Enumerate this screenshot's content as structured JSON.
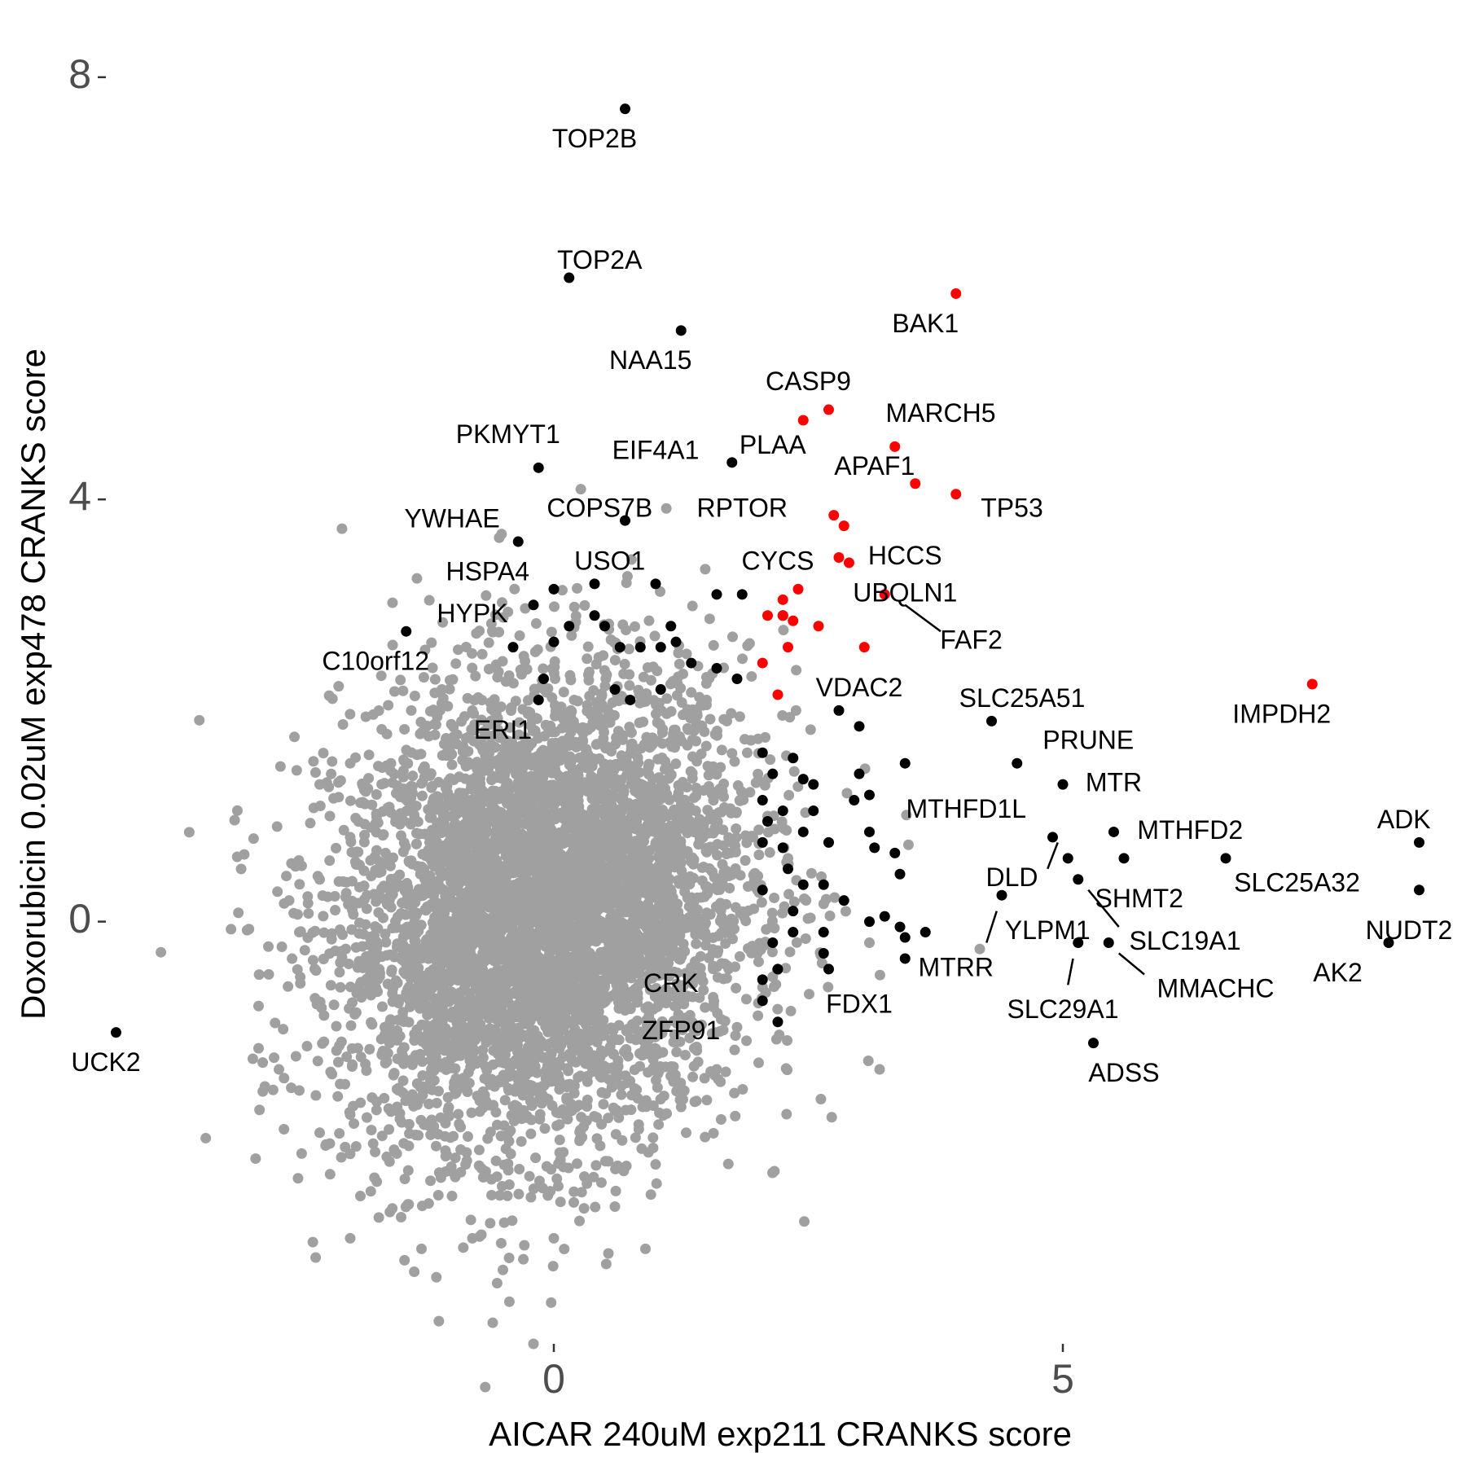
{
  "chart_data": {
    "type": "scatter",
    "xlabel": "AICAR 240uM exp211 CRANKS score",
    "ylabel": "Doxorubicin 0.02uM exp478 CRANKS score",
    "xlim": [
      -4.4,
      8.8
    ],
    "ylim": [
      -4.0,
      8.5
    ],
    "x_ticks": [
      0,
      5
    ],
    "y_ticks": [
      0,
      4,
      8
    ],
    "grid": false,
    "legend": "none",
    "colors": {
      "background": "#a0a0a0",
      "hit": "#000000",
      "apoptosis": "#ff0000"
    },
    "background_cloud": {
      "color": "#a0a0a0",
      "description_free": true,
      "core_center": [
        -0.1,
        0.1
      ],
      "core_spread": [
        1.0,
        1.1
      ],
      "outer_points": [
        [
          -1.4,
          2.0
        ],
        [
          -0.8,
          2.0
        ],
        [
          -1.6,
          1.5
        ],
        [
          -2.0,
          1.5
        ],
        [
          -2.3,
          1.3
        ],
        [
          -2.0,
          0.8
        ],
        [
          -2.3,
          0.4
        ],
        [
          -2.6,
          0.2
        ],
        [
          -2.5,
          -0.1
        ],
        [
          -2.8,
          -0.5
        ],
        [
          -2.9,
          -1.2
        ],
        [
          -2.7,
          -1.4
        ],
        [
          -2.5,
          -1.6
        ],
        [
          -2.3,
          -2.0
        ],
        [
          -2.0,
          -2.2
        ],
        [
          -1.9,
          -2.6
        ],
        [
          -2.0,
          -3.0
        ],
        [
          -1.5,
          -2.8
        ],
        [
          -1.3,
          -3.1
        ],
        [
          -0.8,
          -3.0
        ],
        [
          -0.5,
          -3.3
        ],
        [
          0.0,
          -3.0
        ],
        [
          0.6,
          -2.7
        ],
        [
          1.0,
          -2.3
        ],
        [
          1.3,
          -2.0
        ],
        [
          1.6,
          -1.4
        ],
        [
          1.8,
          -1.0
        ],
        [
          2.0,
          -0.3
        ],
        [
          2.0,
          0.3
        ],
        [
          2.1,
          1.0
        ],
        [
          1.9,
          1.6
        ],
        [
          1.7,
          1.9
        ],
        [
          2.3,
          0.6
        ],
        [
          3.2,
          -1.4
        ],
        [
          3.1,
          -0.2
        ],
        [
          1.4,
          -1.7
        ],
        [
          -0.6,
          -3.8
        ],
        [
          -0.2,
          -4.0
        ],
        [
          -2.2,
          1.0
        ],
        [
          -1.1,
          2.2
        ],
        [
          1.5,
          2.1
        ],
        [
          0.2,
          2.1
        ],
        [
          -2.9,
          -0.8
        ],
        [
          -1.0,
          -2.6
        ],
        [
          0.9,
          -3.1
        ]
      ]
    },
    "hits_black": [
      {
        "x": 0.7,
        "y": 7.7
      },
      {
        "x": 0.15,
        "y": 6.1
      },
      {
        "x": 1.25,
        "y": 5.6
      },
      {
        "x": -0.15,
        "y": 4.3
      },
      {
        "x": 1.75,
        "y": 4.35
      },
      {
        "x": 0.7,
        "y": 3.8
      },
      {
        "x": -0.35,
        "y": 3.6
      },
      {
        "x": -1.45,
        "y": 2.75
      },
      {
        "x": -0.2,
        "y": 3.0
      },
      {
        "x": 0.0,
        "y": 3.15
      },
      {
        "x": 0.4,
        "y": 3.2
      },
      {
        "x": 1.0,
        "y": 3.2
      },
      {
        "x": 1.6,
        "y": 3.1
      },
      {
        "x": 1.85,
        "y": 3.1
      },
      {
        "x": -0.4,
        "y": 2.6
      },
      {
        "x": -0.1,
        "y": 2.3
      },
      {
        "x": -0.15,
        "y": 2.1
      },
      {
        "x": 0.0,
        "y": 2.65
      },
      {
        "x": 0.15,
        "y": 2.8
      },
      {
        "x": 0.4,
        "y": 2.9
      },
      {
        "x": 0.5,
        "y": 2.8
      },
      {
        "x": 0.65,
        "y": 2.6
      },
      {
        "x": 0.85,
        "y": 2.6
      },
      {
        "x": 1.05,
        "y": 2.6
      },
      {
        "x": 1.15,
        "y": 2.8
      },
      {
        "x": 1.2,
        "y": 2.65
      },
      {
        "x": 1.35,
        "y": 2.45
      },
      {
        "x": 0.6,
        "y": 2.2
      },
      {
        "x": 0.75,
        "y": 2.1
      },
      {
        "x": 1.05,
        "y": 2.2
      },
      {
        "x": 1.6,
        "y": 2.4
      },
      {
        "x": 1.8,
        "y": 2.3
      },
      {
        "x": 2.25,
        "y": 2.9
      },
      {
        "x": 2.8,
        "y": 2.0
      },
      {
        "x": 3.0,
        "y": 1.85
      },
      {
        "x": 4.3,
        "y": 1.9
      },
      {
        "x": 4.55,
        "y": 1.5
      },
      {
        "x": 5.0,
        "y": 1.3
      },
      {
        "x": 5.5,
        "y": 0.85
      },
      {
        "x": 6.6,
        "y": 0.6
      },
      {
        "x": 8.5,
        "y": 0.75
      },
      {
        "x": 8.5,
        "y": 0.3
      },
      {
        "x": 4.9,
        "y": 0.8
      },
      {
        "x": 5.05,
        "y": 0.6
      },
      {
        "x": 5.6,
        "y": 0.6
      },
      {
        "x": 5.15,
        "y": 0.4
      },
      {
        "x": 4.4,
        "y": 0.25
      },
      {
        "x": 5.15,
        "y": -0.2
      },
      {
        "x": 5.45,
        "y": -0.2
      },
      {
        "x": 8.2,
        "y": -0.2
      },
      {
        "x": 5.3,
        "y": -1.15
      },
      {
        "x": 3.45,
        "y": 1.5
      },
      {
        "x": 3.0,
        "y": 1.4
      },
      {
        "x": 3.1,
        "y": 1.2
      },
      {
        "x": 2.95,
        "y": 1.15
      },
      {
        "x": 2.55,
        "y": 1.3
      },
      {
        "x": 2.35,
        "y": 1.55
      },
      {
        "x": 2.45,
        "y": 1.35
      },
      {
        "x": 2.15,
        "y": 1.4
      },
      {
        "x": 2.05,
        "y": 1.6
      },
      {
        "x": 2.25,
        "y": 1.05
      },
      {
        "x": 2.55,
        "y": 1.05
      },
      {
        "x": 2.45,
        "y": 0.85
      },
      {
        "x": 2.7,
        "y": 0.75
      },
      {
        "x": 3.1,
        "y": 0.85
      },
      {
        "x": 3.15,
        "y": 0.7
      },
      {
        "x": 3.35,
        "y": 0.65
      },
      {
        "x": 3.4,
        "y": 0.45
      },
      {
        "x": 2.05,
        "y": 1.15
      },
      {
        "x": 2.1,
        "y": 0.95
      },
      {
        "x": 2.25,
        "y": 0.7
      },
      {
        "x": 2.3,
        "y": 0.5
      },
      {
        "x": 2.45,
        "y": 0.35
      },
      {
        "x": 2.65,
        "y": 0.35
      },
      {
        "x": 2.85,
        "y": 0.2
      },
      {
        "x": 2.05,
        "y": 0.3
      },
      {
        "x": 2.05,
        "y": 0.75
      },
      {
        "x": 2.35,
        "y": 0.1
      },
      {
        "x": 2.35,
        "y": -0.1
      },
      {
        "x": 2.15,
        "y": -0.2
      },
      {
        "x": 2.2,
        "y": -0.45
      },
      {
        "x": 2.65,
        "y": -0.1
      },
      {
        "x": 2.65,
        "y": -0.3
      },
      {
        "x": 3.1,
        "y": 0.0
      },
      {
        "x": 3.25,
        "y": 0.05
      },
      {
        "x": 3.4,
        "y": -0.05
      },
      {
        "x": 3.45,
        "y": -0.15
      },
      {
        "x": 3.65,
        "y": -0.1
      },
      {
        "x": 3.45,
        "y": -0.35
      },
      {
        "x": 2.7,
        "y": -0.45
      },
      {
        "x": 2.05,
        "y": -0.55
      },
      {
        "x": 2.05,
        "y": -0.75
      },
      {
        "x": 2.2,
        "y": -0.95
      },
      {
        "x": -4.3,
        "y": -1.05
      }
    ],
    "hits_red": [
      {
        "x": 3.95,
        "y": 5.95
      },
      {
        "x": 2.7,
        "y": 4.85
      },
      {
        "x": 2.45,
        "y": 4.75
      },
      {
        "x": 3.35,
        "y": 4.5
      },
      {
        "x": 3.55,
        "y": 4.15
      },
      {
        "x": 3.95,
        "y": 4.05
      },
      {
        "x": 2.75,
        "y": 3.85
      },
      {
        "x": 2.85,
        "y": 3.75
      },
      {
        "x": 2.8,
        "y": 3.45
      },
      {
        "x": 2.9,
        "y": 3.4
      },
      {
        "x": 3.25,
        "y": 3.1
      },
      {
        "x": 2.4,
        "y": 3.15
      },
      {
        "x": 2.25,
        "y": 3.05
      },
      {
        "x": 2.1,
        "y": 2.9
      },
      {
        "x": 2.25,
        "y": 2.9
      },
      {
        "x": 2.35,
        "y": 2.85
      },
      {
        "x": 2.6,
        "y": 2.8
      },
      {
        "x": 3.05,
        "y": 2.6
      },
      {
        "x": 2.3,
        "y": 2.6
      },
      {
        "x": 2.05,
        "y": 2.45
      },
      {
        "x": 2.2,
        "y": 2.15
      },
      {
        "x": 7.45,
        "y": 2.25
      }
    ],
    "labels": [
      {
        "text": "TOP2B",
        "x": 0.7,
        "y": 7.7,
        "tx": 0.4,
        "ty": 7.4
      },
      {
        "text": "TOP2A",
        "x": 0.15,
        "y": 6.1,
        "tx": 0.45,
        "ty": 6.25
      },
      {
        "text": "BAK1",
        "x": 3.95,
        "y": 5.95,
        "tx": 3.65,
        "ty": 5.65
      },
      {
        "text": "NAA15",
        "x": 1.25,
        "y": 5.6,
        "tx": 0.95,
        "ty": 5.3
      },
      {
        "text": "CASP9",
        "x": 2.7,
        "y": 4.85,
        "tx": 2.5,
        "ty": 5.1
      },
      {
        "text": "MARCH5",
        "x": 3.35,
        "y": 4.5,
        "tx": 3.8,
        "ty": 4.8
      },
      {
        "text": "PKMYT1",
        "x": -0.15,
        "y": 4.3,
        "tx": -0.45,
        "ty": 4.6
      },
      {
        "text": "EIF4A1",
        "x": 0.7,
        "y": 4.35,
        "tx": 1.0,
        "ty": 4.45
      },
      {
        "text": "PLAA",
        "x": 1.75,
        "y": 4.35,
        "tx": 2.15,
        "ty": 4.5
      },
      {
        "text": "APAF1",
        "x": 3.55,
        "y": 4.15,
        "tx": 3.15,
        "ty": 4.3
      },
      {
        "text": "TP53",
        "x": 3.95,
        "y": 4.05,
        "tx": 4.5,
        "ty": 3.9
      },
      {
        "text": "COPS7B",
        "x": 0.7,
        "y": 3.8,
        "tx": 0.45,
        "ty": 3.9
      },
      {
        "text": "RPTOR",
        "x": 2.75,
        "y": 3.85,
        "tx": 1.85,
        "ty": 3.9
      },
      {
        "text": "YWHAE",
        "x": -0.35,
        "y": 3.6,
        "tx": -1.0,
        "ty": 3.8
      },
      {
        "text": "CYCS",
        "x": 2.8,
        "y": 3.45,
        "tx": 2.2,
        "ty": 3.4
      },
      {
        "text": "HCCS",
        "x": 2.85,
        "y": 3.75,
        "tx": 3.45,
        "ty": 3.45
      },
      {
        "text": "HSPA4",
        "x": -0.2,
        "y": 3.0,
        "tx": -0.65,
        "ty": 3.3
      },
      {
        "text": "USO1",
        "x": 0.4,
        "y": 3.2,
        "tx": 0.55,
        "ty": 3.4
      },
      {
        "text": "UBQLN1",
        "x": 3.25,
        "y": 3.1,
        "tx": 3.45,
        "ty": 3.1
      },
      {
        "text": "HYPK",
        "x": -0.2,
        "y": 3.0,
        "tx": -0.8,
        "ty": 2.9
      },
      {
        "text": "FAF2",
        "x": 3.25,
        "y": 3.1,
        "tx": 4.1,
        "ty": 2.65,
        "line": [
          3.45,
          3.0,
          3.8,
          2.75
        ]
      },
      {
        "text": "C10orf12",
        "x": -1.45,
        "y": 2.75,
        "tx": -1.75,
        "ty": 2.45
      },
      {
        "text": "VDAC2",
        "x": 3.05,
        "y": 2.6,
        "tx": 3.0,
        "ty": 2.2
      },
      {
        "text": "SLC25A51",
        "x": 4.3,
        "y": 1.9,
        "tx": 4.6,
        "ty": 2.1
      },
      {
        "text": "IMPDH2",
        "x": 7.45,
        "y": 2.25,
        "tx": 7.15,
        "ty": 1.95
      },
      {
        "text": "ERI1",
        "x": -0.5,
        "y": 1.8,
        "tx": -0.5,
        "ty": 1.8
      },
      {
        "text": "PRUNE",
        "x": 4.55,
        "y": 1.5,
        "tx": 5.25,
        "ty": 1.7
      },
      {
        "text": "MTR",
        "x": 5.0,
        "y": 1.3,
        "tx": 5.5,
        "ty": 1.3
      },
      {
        "text": "MTHFD1L",
        "x": 4.9,
        "y": 0.8,
        "tx": 4.05,
        "ty": 1.05
      },
      {
        "text": "MTHFD2",
        "x": 5.5,
        "y": 0.85,
        "tx": 6.25,
        "ty": 0.85
      },
      {
        "text": "ADK",
        "x": 8.5,
        "y": 0.75,
        "tx": 8.35,
        "ty": 0.95
      },
      {
        "text": "SLC25A32",
        "x": 6.6,
        "y": 0.6,
        "tx": 7.3,
        "ty": 0.35
      },
      {
        "text": "DLD",
        "x": 4.9,
        "y": 0.8,
        "tx": 4.5,
        "ty": 0.4,
        "line": [
          4.85,
          0.5,
          4.95,
          0.75
        ]
      },
      {
        "text": "SHMT2",
        "x": 5.15,
        "y": 0.4,
        "tx": 5.75,
        "ty": 0.2
      },
      {
        "text": "YLPM1",
        "x": 5.15,
        "y": 0.4,
        "tx": 4.85,
        "ty": -0.1
      },
      {
        "text": "NUDT2",
        "x": 8.5,
        "y": 0.3,
        "tx": 8.4,
        "ty": -0.1
      },
      {
        "text": "SLC19A1",
        "x": 5.15,
        "y": 0.4,
        "tx": 6.2,
        "ty": -0.2,
        "line": [
          5.25,
          0.3,
          5.55,
          -0.05
        ]
      },
      {
        "text": "MTRR",
        "x": 4.4,
        "y": 0.25,
        "tx": 3.95,
        "ty": -0.45,
        "line": [
          4.25,
          -0.2,
          4.35,
          0.1
        ]
      },
      {
        "text": "AK2",
        "x": 8.2,
        "y": -0.2,
        "tx": 7.7,
        "ty": -0.5
      },
      {
        "text": "MMACHC",
        "x": 5.45,
        "y": -0.2,
        "tx": 6.5,
        "ty": -0.65,
        "line": [
          5.55,
          -0.3,
          5.8,
          -0.5
        ]
      },
      {
        "text": "CRK",
        "x": 1.35,
        "y": -0.6,
        "tx": 1.15,
        "ty": -0.6
      },
      {
        "text": "FDX1",
        "x": 2.7,
        "y": -0.45,
        "tx": 3.0,
        "ty": -0.8
      },
      {
        "text": "SLC29A1",
        "x": 5.15,
        "y": -0.2,
        "tx": 5.0,
        "ty": -0.85,
        "line": [
          5.05,
          -0.6,
          5.1,
          -0.35
        ]
      },
      {
        "text": "ZFP91",
        "x": 1.3,
        "y": -0.95,
        "tx": 1.25,
        "ty": -1.05
      },
      {
        "text": "ADSS",
        "x": 5.3,
        "y": -1.15,
        "tx": 5.6,
        "ty": -1.45
      },
      {
        "text": "UCK2",
        "x": -4.3,
        "y": -1.05,
        "tx": -4.4,
        "ty": -1.35
      }
    ]
  }
}
